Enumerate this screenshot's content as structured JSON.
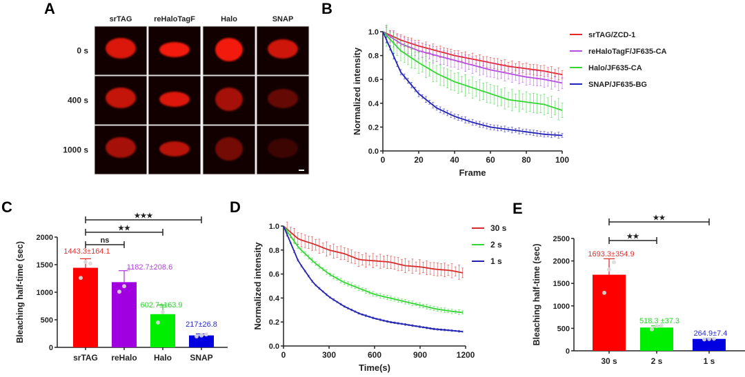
{
  "panels": {
    "A": "A",
    "B": "B",
    "C": "C",
    "D": "D",
    "E": "E"
  },
  "panel_a": {
    "columns": [
      "srTAG",
      "reHaloTagF",
      "Halo",
      "SNAP"
    ],
    "rows": [
      "0 s",
      "400 s",
      "1000 s"
    ],
    "intensity": [
      [
        0.85,
        0.95,
        0.95,
        0.8
      ],
      [
        0.75,
        0.85,
        0.62,
        0.35
      ],
      [
        0.62,
        0.7,
        0.42,
        0.18
      ]
    ],
    "nucleus_color": "#ff1a10",
    "scale_bar": true
  },
  "chart_data": [
    {
      "id": "B",
      "type": "line",
      "title": "",
      "xlabel": "Frame",
      "ylabel": "Normalized intensity",
      "xlim": [
        0,
        100
      ],
      "ylim": [
        0,
        1.0
      ],
      "xticks": [
        "0",
        "20",
        "40",
        "60",
        "80",
        "100"
      ],
      "yticks": [
        "0.0",
        "0.2",
        "0.4",
        "0.6",
        "0.8",
        "1.0"
      ],
      "legend_position": "right",
      "x": [
        0,
        10,
        20,
        30,
        40,
        50,
        60,
        70,
        80,
        90,
        100
      ],
      "series": [
        {
          "name": "srTAG/ZCD-1",
          "color": "#e8262a",
          "values": [
            1.0,
            0.93,
            0.88,
            0.84,
            0.8,
            0.77,
            0.74,
            0.71,
            0.69,
            0.67,
            0.64
          ],
          "err": 0.05
        },
        {
          "name": "reHaloTagF/JF635-CA",
          "color": "#b34fe0",
          "values": [
            1.0,
            0.9,
            0.84,
            0.8,
            0.76,
            0.72,
            0.68,
            0.65,
            0.62,
            0.6,
            0.57
          ],
          "err": 0.07
        },
        {
          "name": "Halo/JF635-CA",
          "color": "#33d633",
          "values": [
            1.0,
            0.84,
            0.74,
            0.65,
            0.58,
            0.53,
            0.48,
            0.43,
            0.41,
            0.39,
            0.34
          ],
          "err": 0.09
        },
        {
          "name": "SNAP/JF635-BG",
          "color": "#2222b8",
          "values": [
            1.0,
            0.66,
            0.48,
            0.36,
            0.29,
            0.24,
            0.2,
            0.18,
            0.16,
            0.14,
            0.13
          ],
          "err": 0.025
        }
      ]
    },
    {
      "id": "C",
      "type": "bar",
      "title": "",
      "xlabel": "",
      "ylabel": "Bleaching half-time (sec)",
      "ylim": [
        0,
        2000
      ],
      "yticks": [
        "0",
        "500",
        "1000",
        "1500",
        "2000"
      ],
      "categories": [
        "srTAG",
        "reHalo",
        "Halo",
        "SNAP"
      ],
      "values": [
        1443.3,
        1182.7,
        602.7,
        217
      ],
      "errors": [
        164.1,
        208.6,
        163.9,
        26.8
      ],
      "labels": [
        "1443.3±164.1",
        "1182.7±208.6",
        "602.7±163.9",
        "217±26.8"
      ],
      "colors": [
        "#ff0000",
        "#a000e0",
        "#00ee00",
        "#0000e0"
      ],
      "label_colors": [
        "#e03030",
        "#b040e0",
        "#30d030",
        "#2a2ac8"
      ],
      "points": [
        [
          1260,
          1550,
          1520
        ],
        [
          1010,
          1110,
          1420
        ],
        [
          450,
          640,
          770
        ],
        [
          200,
          215,
          235
        ]
      ],
      "significance": [
        {
          "from": 0,
          "to": 1,
          "label": "ns"
        },
        {
          "from": 0,
          "to": 2,
          "label": "★★"
        },
        {
          "from": 0,
          "to": 3,
          "label": "★★★"
        }
      ]
    },
    {
      "id": "D",
      "type": "line",
      "title": "",
      "xlabel": "Time(s)",
      "ylabel": "Normalized intensity",
      "xlim": [
        0,
        1200
      ],
      "ylim": [
        0,
        1.0
      ],
      "xticks": [
        "0",
        "300",
        "600",
        "900",
        "1200"
      ],
      "yticks": [
        "0.0",
        "0.2",
        "0.4",
        "0.6",
        "0.8",
        "1.0"
      ],
      "legend_position": "right",
      "x": [
        0,
        100,
        200,
        300,
        400,
        500,
        600,
        700,
        800,
        900,
        1000,
        1100,
        1180
      ],
      "series": [
        {
          "name": "30 s",
          "color": "#d62a2a",
          "values": [
            1.0,
            0.89,
            0.85,
            0.8,
            0.77,
            0.72,
            0.71,
            0.7,
            0.67,
            0.66,
            0.64,
            0.63,
            0.61
          ],
          "err": 0.06
        },
        {
          "name": "2 s",
          "color": "#33d633",
          "values": [
            1.0,
            0.82,
            0.7,
            0.6,
            0.53,
            0.48,
            0.43,
            0.4,
            0.37,
            0.34,
            0.31,
            0.29,
            0.28
          ],
          "err": 0.02
        },
        {
          "name": "1 s",
          "color": "#2020b0",
          "values": [
            1.0,
            0.7,
            0.52,
            0.41,
            0.33,
            0.27,
            0.23,
            0.2,
            0.18,
            0.16,
            0.14,
            0.13,
            0.12
          ],
          "err": 0.008
        }
      ]
    },
    {
      "id": "E",
      "type": "bar",
      "title": "",
      "xlabel": "",
      "ylabel": "Bleaching half-time (sec)",
      "ylim": [
        0,
        2500
      ],
      "yticks": [
        "0",
        "500",
        "1000",
        "1500",
        "2000",
        "2500"
      ],
      "categories": [
        "30 s",
        "2 s",
        "1 s"
      ],
      "values": [
        1693.3,
        518.3,
        264.9
      ],
      "errors": [
        354.9,
        37.3,
        7.4
      ],
      "labels": [
        "1693.3±354.9",
        "518.3 ±37.3",
        "264.9±7.4"
      ],
      "colors": [
        "#ff0000",
        "#00ee00",
        "#0000e0"
      ],
      "label_colors": [
        "#e03030",
        "#30d030",
        "#2a2ac8"
      ],
      "points": [
        [
          1290,
          1810,
          1970
        ],
        [
          480,
          550,
          560
        ],
        [
          255,
          262,
          270
        ]
      ],
      "significance": [
        {
          "from": 0,
          "to": 1,
          "label": "★★"
        },
        {
          "from": 0,
          "to": 2,
          "label": "★★"
        }
      ]
    }
  ]
}
